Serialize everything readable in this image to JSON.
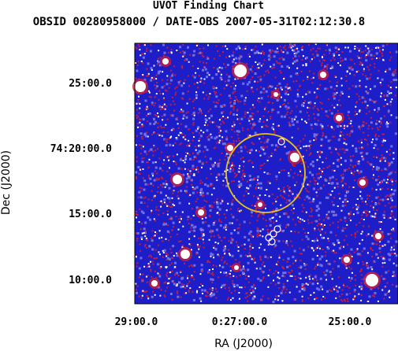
{
  "chart_data": {
    "type": "image",
    "title": "UVOT Finding Chart",
    "subtitle": "OBSID 00280958000 / DATE-OBS 2007-05-31T02:12:30.8",
    "xlabel": "RA (J2000)",
    "ylabel": "Dec (J2000)",
    "x_ticks": [
      "29:00.0",
      "0:27:00.0",
      "25:00.0"
    ],
    "y_ticks": [
      "25:00.0",
      "74:20:00.0",
      "15:00.0",
      "10:00.0"
    ],
    "colormap": [
      "#1e1ec8",
      "#c81e3c",
      "#ffffff"
    ],
    "frame_color": "#000000",
    "markers": [
      {
        "name": "error-circle",
        "shape": "circle",
        "color": "#e8c020"
      },
      {
        "name": "source-circle-1",
        "shape": "circle",
        "color": "#ffffff"
      },
      {
        "name": "source-circle-2",
        "shape": "circle",
        "color": "#ffffff"
      },
      {
        "name": "source-circle-3",
        "shape": "circle",
        "color": "#ffffff"
      },
      {
        "name": "source-circle-4",
        "shape": "circle",
        "color": "#ffffff"
      },
      {
        "name": "source-circle-5",
        "shape": "circle",
        "color": "#ffffff"
      }
    ]
  }
}
